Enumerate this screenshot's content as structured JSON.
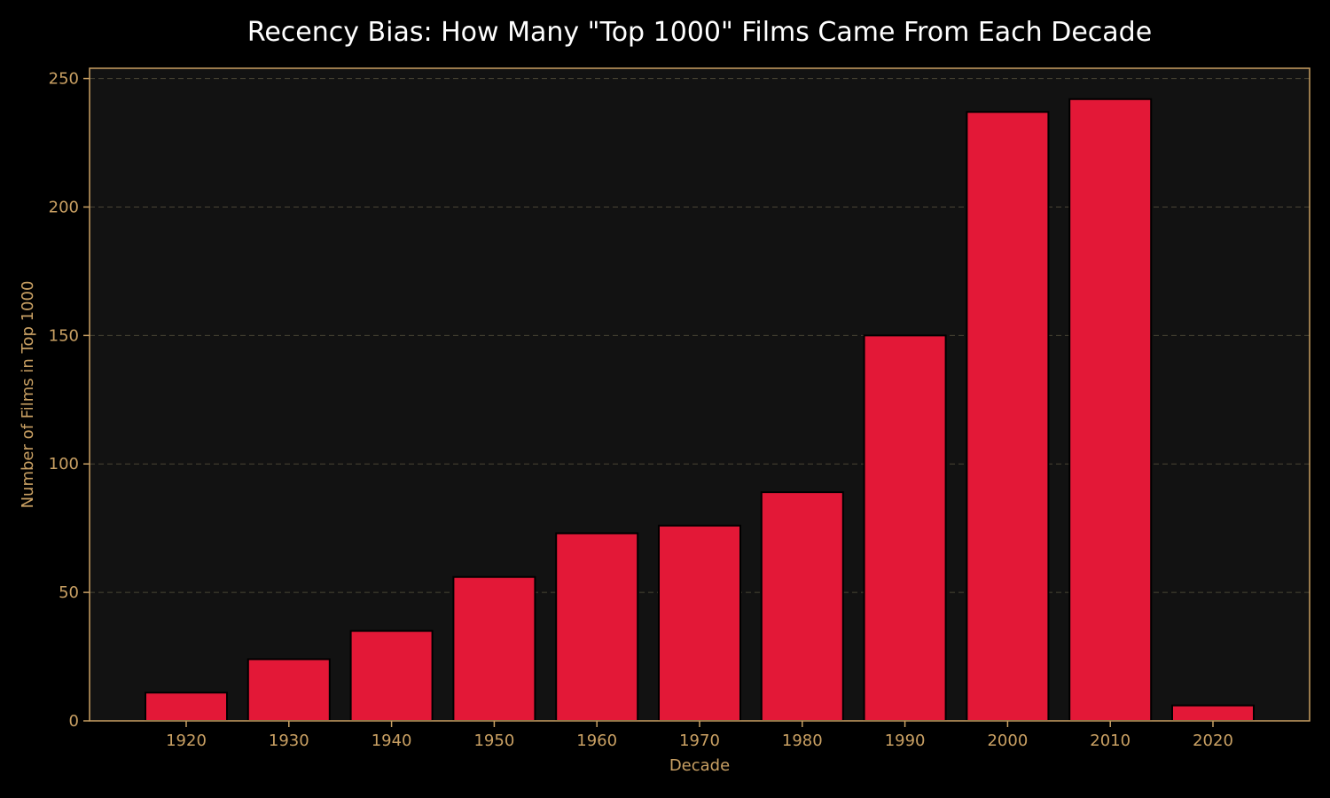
{
  "chart_data": {
    "type": "bar",
    "title": "Recency Bias: How Many \"Top 1000\" Films Came From Each Decade",
    "xlabel": "Decade",
    "ylabel": "Number of Films in Top 1000",
    "categories": [
      "1920",
      "1930",
      "1940",
      "1950",
      "1960",
      "1970",
      "1980",
      "1990",
      "2000",
      "2010",
      "2020"
    ],
    "values": [
      11,
      24,
      35,
      56,
      73,
      76,
      89,
      150,
      237,
      242,
      6
    ],
    "ylim": [
      0,
      254
    ],
    "yticks": [
      0,
      50,
      100,
      150,
      200,
      250
    ],
    "grid": "horizontal-dashed",
    "legend": "none"
  },
  "colors": {
    "background": "#000000",
    "plot_background": "#121212",
    "bar_fill": "#e31837",
    "bar_edge": "#000000",
    "axis_gold": "#c9a063",
    "grid": "#4a4535",
    "title": "#ffffff"
  }
}
